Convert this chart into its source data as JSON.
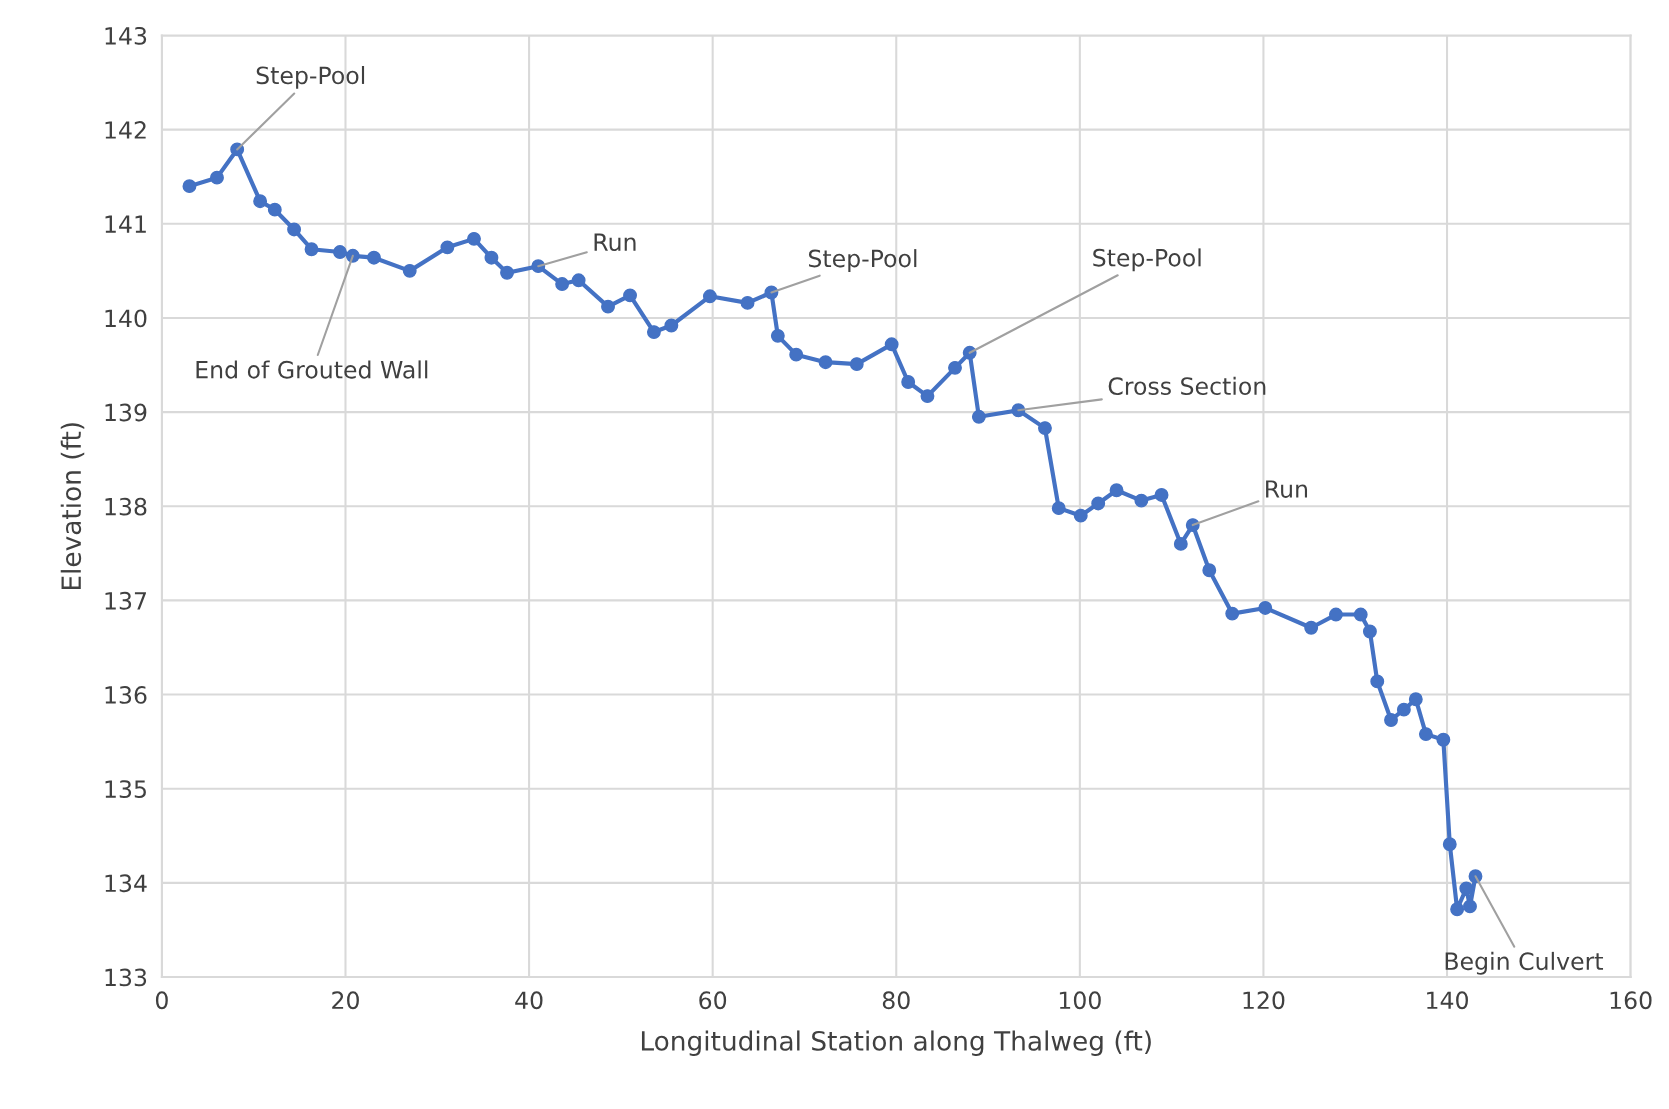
{
  "chart_data": {
    "type": "line",
    "xlabel": "Longitudinal Station along Thalweg (ft)",
    "ylabel": "Elevation (ft)",
    "x": [
      3.0,
      6.0,
      8.2,
      10.7,
      12.3,
      14.4,
      16.3,
      19.4,
      20.8,
      23.1,
      27.0,
      31.1,
      34.0,
      35.9,
      37.6,
      41.0,
      43.6,
      45.4,
      48.6,
      51.0,
      53.6,
      55.5,
      59.7,
      63.8,
      66.4,
      67.1,
      69.1,
      72.3,
      75.7,
      79.5,
      81.3,
      83.4,
      86.4,
      88.0,
      89.0,
      93.3,
      96.2,
      97.7,
      100.1,
      102.0,
      104.0,
      106.7,
      108.9,
      111.0,
      112.3,
      114.1,
      116.6,
      120.2,
      125.2,
      127.9,
      130.6,
      131.6,
      132.4,
      133.9,
      135.3,
      136.6,
      137.7,
      139.6,
      140.3,
      141.1,
      142.1,
      142.5,
      143.1
    ],
    "series": [
      {
        "color": "#4472c4",
        "values": [
          141.4,
          141.49,
          141.79,
          141.24,
          141.15,
          140.94,
          140.73,
          140.7,
          140.66,
          140.64,
          140.5,
          140.75,
          140.84,
          140.64,
          140.48,
          140.55,
          140.36,
          140.4,
          140.12,
          140.24,
          139.85,
          139.92,
          140.23,
          140.16,
          140.27,
          139.81,
          139.61,
          139.53,
          139.51,
          139.72,
          139.32,
          139.17,
          139.47,
          139.63,
          138.95,
          139.02,
          138.83,
          137.98,
          137.9,
          138.03,
          138.17,
          138.06,
          138.12,
          137.6,
          137.8,
          137.32,
          136.86,
          136.92,
          136.71,
          136.85,
          136.85,
          136.67,
          136.14,
          135.73,
          135.84,
          135.95,
          135.58,
          135.52,
          134.41,
          133.72,
          133.94,
          133.75,
          134.07
        ]
      }
    ],
    "xlim": [
      0,
      160
    ],
    "xticks": [
      0,
      20,
      40,
      60,
      80,
      100,
      120,
      140,
      160
    ],
    "ylim": [
      133,
      143
    ],
    "yticks": [
      133,
      134,
      135,
      136,
      137,
      138,
      139,
      140,
      141,
      142,
      143
    ],
    "grid": true,
    "marker": "circle",
    "line_style": "solid",
    "annotations": [
      {
        "text": "Step-Pool",
        "x": 8.2,
        "y": 141.79
      },
      {
        "text": "End of Grouted Wall",
        "x": 20.8,
        "y": 140.66
      },
      {
        "text": "Run",
        "x": 41.0,
        "y": 140.55
      },
      {
        "text": "Step-Pool",
        "x": 66.4,
        "y": 140.27
      },
      {
        "text": "Step-Pool",
        "x": 88.0,
        "y": 139.63
      },
      {
        "text": "Cross Section",
        "x": 93.3,
        "y": 139.02
      },
      {
        "text": "Run",
        "x": 112.3,
        "y": 137.8
      },
      {
        "text": "Begin Culvert",
        "x": 143.1,
        "y": 134.07
      }
    ]
  }
}
